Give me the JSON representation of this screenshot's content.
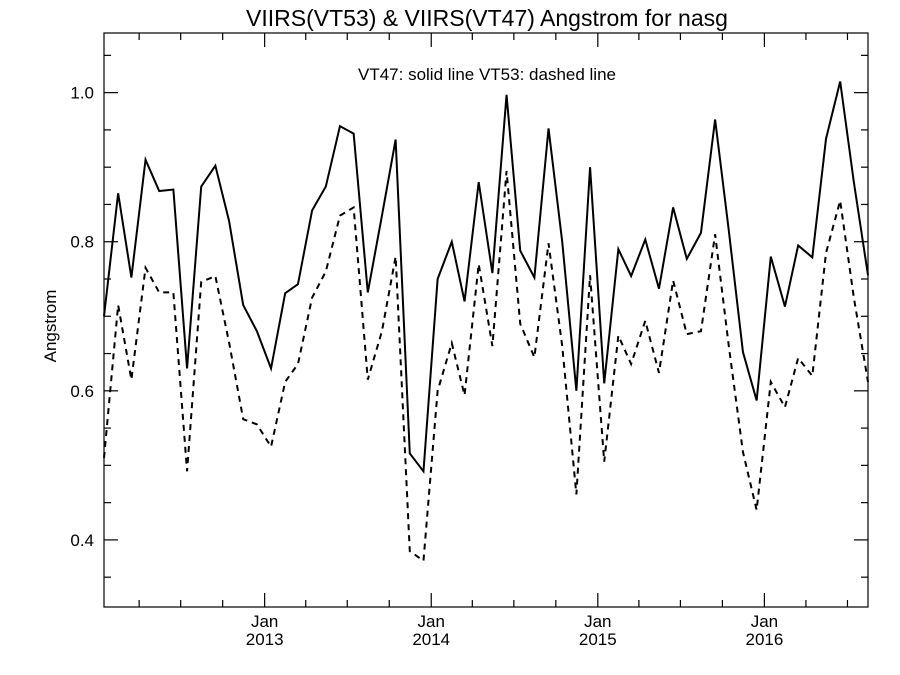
{
  "chart_data": {
    "type": "line",
    "title": "VIIRS(VT53) & VIIRS(VT47)  Angstrom for nasg",
    "annotation": "VT47: solid line   VT53: dashed line",
    "xlabel": "",
    "ylabel": "Angstrom",
    "ylim": [
      0.31,
      1.08
    ],
    "yticks": [
      0.4,
      0.6,
      0.8,
      1.0
    ],
    "yticklabels": [
      "0.4",
      "0.6",
      "0.8",
      "1.0"
    ],
    "xlim": [
      "2012-01-15",
      "2016-08-15"
    ],
    "xticks": [
      {
        "date": "2013-01-01",
        "month": "Jan",
        "year": "2013"
      },
      {
        "date": "2014-01-01",
        "month": "Jan",
        "year": "2014"
      },
      {
        "date": "2015-01-01",
        "month": "Jan",
        "year": "2015"
      },
      {
        "date": "2016-01-01",
        "month": "Jan",
        "year": "2016"
      }
    ],
    "grid": false,
    "x": [
      "2012-01-15",
      "2012-02-15",
      "2012-03-15",
      "2012-04-15",
      "2012-05-15",
      "2012-06-15",
      "2012-07-15",
      "2012-08-15",
      "2012-09-15",
      "2012-10-15",
      "2012-11-15",
      "2012-12-15",
      "2013-01-15",
      "2013-02-15",
      "2013-03-15",
      "2013-04-15",
      "2013-05-15",
      "2013-06-15",
      "2013-07-15",
      "2013-08-15",
      "2013-09-15",
      "2013-10-15",
      "2013-11-15",
      "2013-12-15",
      "2014-01-15",
      "2014-02-15",
      "2014-03-15",
      "2014-04-15",
      "2014-05-15",
      "2014-06-15",
      "2014-07-15",
      "2014-08-15",
      "2014-09-15",
      "2014-10-15",
      "2014-11-15",
      "2014-12-15",
      "2015-01-15",
      "2015-02-15",
      "2015-03-15",
      "2015-04-15",
      "2015-05-15",
      "2015-06-15",
      "2015-07-15",
      "2015-08-15",
      "2015-09-15",
      "2015-10-15",
      "2015-11-15",
      "2015-12-15",
      "2016-01-15",
      "2016-02-15",
      "2016-03-15",
      "2016-04-15",
      "2016-05-15",
      "2016-06-15",
      "2016-07-15",
      "2016-08-15"
    ],
    "series": [
      {
        "name": "VT47",
        "style": "solid",
        "values": [
          0.7,
          0.865,
          0.752,
          0.91,
          0.868,
          0.87,
          0.63,
          0.874,
          0.902,
          0.828,
          0.715,
          0.68,
          0.63,
          0.731,
          0.743,
          0.842,
          0.874,
          0.955,
          0.945,
          0.732,
          0.835,
          0.937,
          0.516,
          0.492,
          0.75,
          0.8,
          0.72,
          0.88,
          0.758,
          0.997,
          0.788,
          0.752,
          0.952,
          0.8,
          0.6,
          0.9,
          0.61,
          0.79,
          0.754,
          0.803,
          0.737,
          0.846,
          0.777,
          0.812,
          0.964,
          0.815,
          0.652,
          0.587,
          0.78,
          0.713,
          0.795,
          0.779,
          0.938,
          1.015,
          0.88,
          0.755
        ]
      },
      {
        "name": "VT53",
        "style": "dashed",
        "values": [
          0.51,
          0.715,
          0.615,
          0.765,
          0.732,
          0.732,
          0.492,
          0.746,
          0.754,
          0.665,
          0.562,
          0.555,
          0.525,
          0.612,
          0.636,
          0.725,
          0.76,
          0.835,
          0.846,
          0.615,
          0.68,
          0.78,
          0.385,
          0.372,
          0.6,
          0.664,
          0.594,
          0.77,
          0.66,
          0.895,
          0.69,
          0.645,
          0.798,
          0.66,
          0.461,
          0.755,
          0.505,
          0.674,
          0.636,
          0.694,
          0.624,
          0.748,
          0.676,
          0.68,
          0.81,
          0.66,
          0.518,
          0.44,
          0.612,
          0.578,
          0.644,
          0.62,
          0.785,
          0.855,
          0.725,
          0.612
        ]
      }
    ]
  }
}
